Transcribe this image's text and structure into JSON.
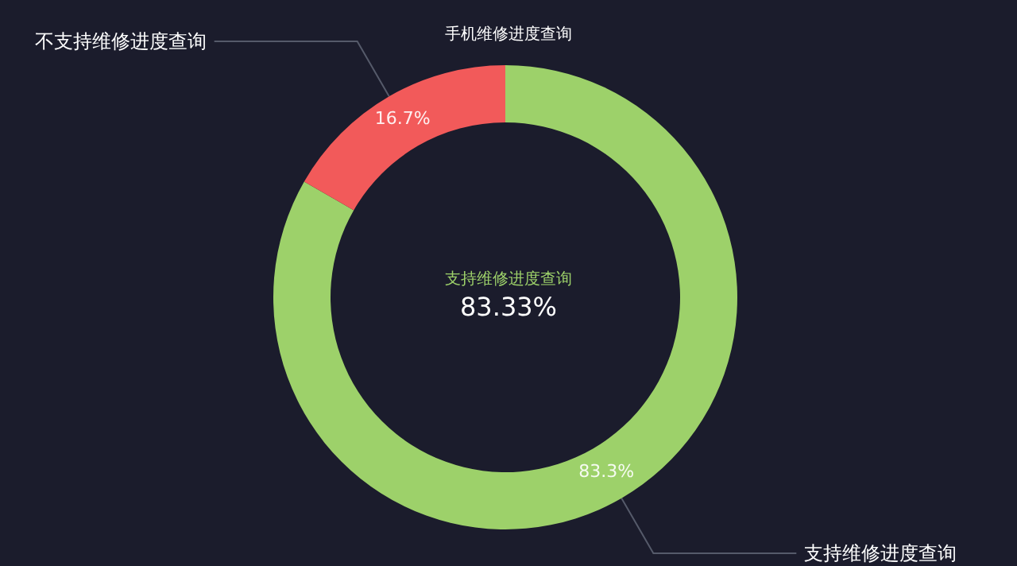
{
  "chart_data": {
    "type": "donut",
    "title": "手机维修进度查询",
    "categories": [
      "支持维修进度查询",
      "不支持维修进度查询"
    ],
    "values": [
      83.3,
      16.7
    ],
    "colors": [
      "#9dd16a",
      "#f25a5a"
    ],
    "value_labels": [
      "83.3%",
      "16.7%"
    ],
    "annotations": [
      "支持维修进度查询",
      "83.33%"
    ],
    "legend": false
  }
}
